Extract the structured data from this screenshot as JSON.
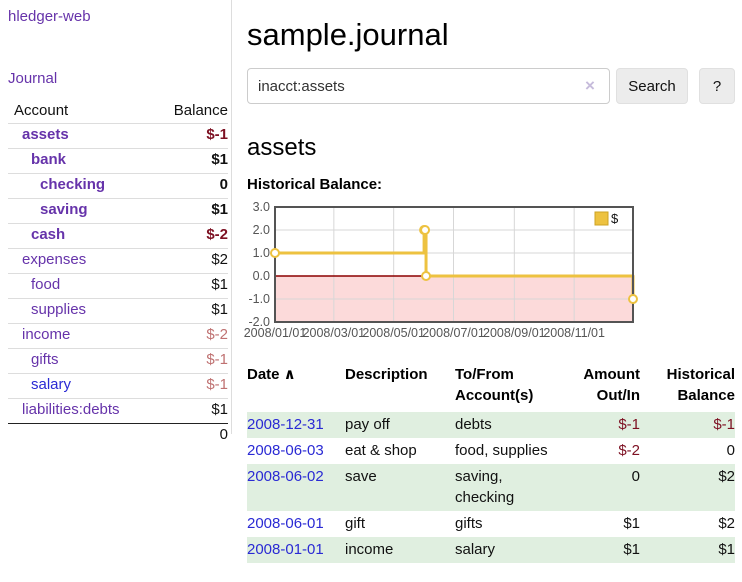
{
  "app": {
    "brand": "hledger-web",
    "nav_journal": "Journal"
  },
  "colors": {
    "link_purple": "#6633aa",
    "link_blue": "#2a2ad4",
    "negative_strong": "#7d1022",
    "negative_soft": "#bf7171",
    "row_stripe_green": "#e0efe0",
    "series_gold": "#edc240",
    "chart_negative_region": "#fcdada",
    "chart_zero_line": "#8b0000"
  },
  "sidebar": {
    "header": {
      "account": "Account",
      "balance": "Balance"
    },
    "accounts": [
      {
        "name": "assets",
        "indent": 1,
        "emph": true,
        "balance": "$-1",
        "neg": "strong"
      },
      {
        "name": "bank",
        "indent": 2,
        "emph": true,
        "balance": "$1",
        "neg": null
      },
      {
        "name": "checking",
        "indent": 3,
        "emph": true,
        "balance": "0",
        "neg": null
      },
      {
        "name": "saving",
        "indent": 3,
        "emph": true,
        "balance": "$1",
        "neg": null
      },
      {
        "name": "cash",
        "indent": 2,
        "emph": true,
        "balance": "$-2",
        "neg": "strong"
      },
      {
        "name": "expenses",
        "indent": 1,
        "emph": false,
        "balance": "$2",
        "neg": null
      },
      {
        "name": "food",
        "indent": 2,
        "emph": false,
        "balance": "$1",
        "neg": null
      },
      {
        "name": "supplies",
        "indent": 2,
        "emph": false,
        "balance": "$1",
        "neg": null
      },
      {
        "name": "income",
        "indent": 1,
        "emph": false,
        "balance": "$-2",
        "neg": "soft"
      },
      {
        "name": "gifts",
        "indent": 2,
        "emph": false,
        "balance": "$-1",
        "neg": "soft"
      },
      {
        "name": "salary",
        "indent": 2,
        "emph": false,
        "balance": "$-1",
        "neg": "soft",
        "link_blue": true
      },
      {
        "name": "liabilities:debts",
        "indent": 1,
        "emph": false,
        "balance": "$1",
        "neg": null
      }
    ],
    "total": "0"
  },
  "main": {
    "title": "sample.journal",
    "search": {
      "value": "inacct:assets",
      "clear_icon": "×",
      "button_label": "Search",
      "help_label": "?"
    },
    "account_heading": "assets",
    "chart_label": "Historical Balance:"
  },
  "chart_data": {
    "type": "line",
    "step": true,
    "title": "Historical Balance:",
    "series": [
      {
        "name": "$",
        "color": "#edc240",
        "points": [
          {
            "date": "2008-01-01",
            "value": 1
          },
          {
            "date": "2008-06-01",
            "value": 2
          },
          {
            "date": "2008-06-02",
            "value": 2
          },
          {
            "date": "2008-06-03",
            "value": 0
          },
          {
            "date": "2008-12-31",
            "value": -1
          }
        ]
      }
    ],
    "x_range": [
      "2008-01-01",
      "2008-12-31"
    ],
    "x_ticks": [
      {
        "date": "2008-01-01",
        "label": "2008/01/01"
      },
      {
        "date": "2008-03-01",
        "label": "2008/03/01"
      },
      {
        "date": "2008-05-01",
        "label": "2008/05/01"
      },
      {
        "date": "2008-07-01",
        "label": "2008/07/01"
      },
      {
        "date": "2008-09-01",
        "label": "2008/09/01"
      },
      {
        "date": "2008-11-01",
        "label": "2008/11/01"
      }
    ],
    "y_ticks": [
      {
        "value": 3,
        "label": "3.0"
      },
      {
        "value": 2,
        "label": "2.0"
      },
      {
        "value": 1,
        "label": "1.0"
      },
      {
        "value": 0,
        "label": "0.0"
      },
      {
        "value": -1,
        "label": "-1.0"
      },
      {
        "value": -2,
        "label": "-2.0"
      }
    ],
    "ylim": [
      -2,
      3
    ],
    "grid": true,
    "legend": {
      "label": "$",
      "position": "top-right"
    }
  },
  "register": {
    "columns": [
      {
        "label": "Date",
        "sort": "∧",
        "align": "left"
      },
      {
        "label": "Description",
        "align": "left"
      },
      {
        "label": "To/From Account(s)",
        "align": "left"
      },
      {
        "label": "Amount Out/In",
        "align": "right"
      },
      {
        "label": "Historical Balance",
        "align": "right"
      }
    ],
    "rows": [
      {
        "date": "2008-12-31",
        "description": "pay off",
        "accounts": "debts",
        "amount": "$-1",
        "amount_neg": true,
        "balance": "$-1",
        "balance_neg": true,
        "stripe": true
      },
      {
        "date": "2008-06-03",
        "description": "eat & shop",
        "accounts": "food, supplies",
        "amount": "$-2",
        "amount_neg": true,
        "balance": "0",
        "balance_neg": false,
        "stripe": false
      },
      {
        "date": "2008-06-02",
        "description": "save",
        "accounts": "saving, checking",
        "amount": "0",
        "amount_neg": false,
        "balance": "$2",
        "balance_neg": false,
        "stripe": true
      },
      {
        "date": "2008-06-01",
        "description": "gift",
        "accounts": "gifts",
        "amount": "$1",
        "amount_neg": false,
        "balance": "$2",
        "balance_neg": false,
        "stripe": false
      },
      {
        "date": "2008-01-01",
        "description": "income",
        "accounts": "salary",
        "amount": "$1",
        "amount_neg": false,
        "balance": "$1",
        "balance_neg": false,
        "stripe": true
      }
    ]
  }
}
